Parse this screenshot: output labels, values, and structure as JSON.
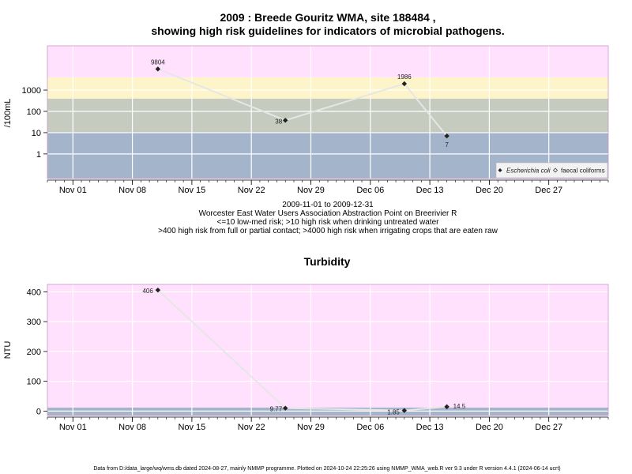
{
  "chart_data": [
    {
      "type": "line",
      "title": "2009 : Breede Gouritz WMA, site 188484 ,",
      "subtitle": "showing high risk guidelines for indicators of microbial pathogens.",
      "xlabel_lines": [
        "2009-11-01 to 2009-12-31",
        "Worcester East Water Users Association Abstraction Point on Breerivier R",
        "<=10 low-med risk; >10 high risk when drinking untreated water",
        ">400 high risk from full or partial contact; >4000 high risk when irrigating crops that are eaten raw"
      ],
      "ylabel": "/100mL",
      "y_scale": "log",
      "y_ticks": [
        1,
        10,
        100,
        1000
      ],
      "y_tick_labels": [
        "1",
        "10",
        "100",
        "1000"
      ],
      "x_ticks": [
        "2009-11-01",
        "2009-11-08",
        "2009-11-15",
        "2009-11-22",
        "2009-11-29",
        "2009-12-06",
        "2009-12-13",
        "2009-12-20",
        "2009-12-27"
      ],
      "x_tick_labels": [
        "Nov 01",
        "Nov 08",
        "Nov 15",
        "Nov 22",
        "Nov 29",
        "Dec 06",
        "Dec 13",
        "Dec 20",
        "Dec 27"
      ],
      "x_range": [
        "2009-10-29",
        "2010-01-03"
      ],
      "y_range": [
        0.07,
        120000
      ],
      "bands": [
        {
          "from": 0.07,
          "to": 10,
          "color": "#a3b4cb"
        },
        {
          "from": 10,
          "to": 400,
          "color": "#c5cbbe"
        },
        {
          "from": 400,
          "to": 4000,
          "color": "#fdf5c9"
        },
        {
          "from": 4000,
          "to": 120000,
          "color": "#ffe0fd"
        }
      ],
      "series": [
        {
          "name": "Escherichia coli",
          "marker": "filled-diamond",
          "color": "#222222",
          "x": [
            "2009-11-11",
            "2009-11-26",
            "2009-12-10",
            "2009-12-15"
          ],
          "y": [
            9804,
            38,
            1986,
            7
          ],
          "labels": [
            "9804",
            "38",
            "1986",
            "7"
          ]
        }
      ],
      "legend": {
        "placement": "bottom-right",
        "entries": [
          "Escherichia coli",
          "faecal coliforms"
        ]
      }
    },
    {
      "type": "line",
      "title": "Turbidity",
      "ylabel": "NTU",
      "y_ticks": [
        0,
        100,
        200,
        300,
        400
      ],
      "y_tick_labels": [
        "0",
        "100",
        "200",
        "300",
        "400"
      ],
      "x_ticks": [
        "2009-11-01",
        "2009-11-08",
        "2009-11-15",
        "2009-11-22",
        "2009-11-29",
        "2009-12-06",
        "2009-12-13",
        "2009-12-20",
        "2009-12-27"
      ],
      "x_tick_labels": [
        "Nov 01",
        "Nov 08",
        "Nov 15",
        "Nov 22",
        "Nov 29",
        "Dec 06",
        "Dec 13",
        "Dec 20",
        "Dec 27"
      ],
      "x_range": [
        "2009-10-29",
        "2010-01-03"
      ],
      "y_range": [
        -15,
        425
      ],
      "bands": [
        {
          "from": -15,
          "to": 12,
          "color": "#a3b4cb"
        },
        {
          "from": 12,
          "to": 425,
          "color": "#ffe0fd"
        }
      ],
      "series": [
        {
          "name": "Turbidity",
          "marker": "filled-diamond",
          "color": "#222222",
          "x": [
            "2009-11-11",
            "2009-11-26",
            "2009-12-10",
            "2009-12-15"
          ],
          "y": [
            406,
            9.77,
            1.85,
            14.5
          ],
          "labels": [
            "406",
            "9.77",
            "1.85",
            "14.5"
          ]
        }
      ]
    }
  ],
  "footer": "Data from D:/data_large/wq/wms.db dated 2024-08-27, mainly NMMP programme. Plotted on 2024-10-24 22:25:26 using NMMP_WMA_web.R ver 9.3 under R version 4.4.1 (2024-06-14 ucrt)"
}
